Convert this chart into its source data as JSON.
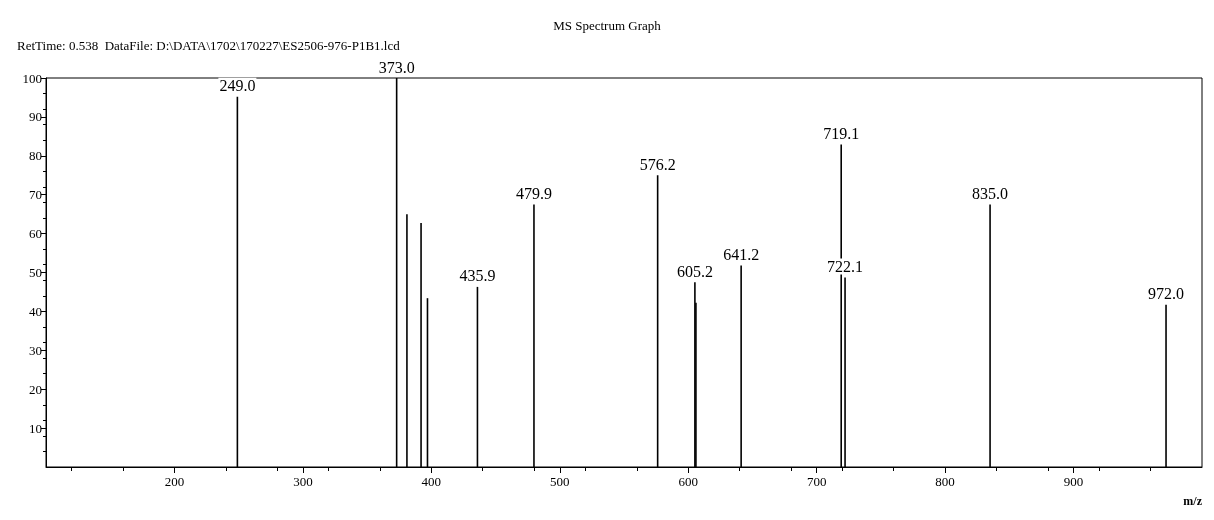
{
  "chart_data": {
    "type": "bar",
    "title": "MS Spectrum Graph",
    "subtitle": "RetTime: 0.538  DataFile: D:\\DATA\\1702\\170227\\ES2506-976-P1B1.lcd",
    "xlabel": "m/z",
    "x": [
      249.0,
      373.0,
      381,
      392,
      397,
      435.9,
      479.9,
      576.2,
      605.2,
      606,
      641.2,
      719.1,
      722.1,
      835.0,
      972.0
    ],
    "values": [
      95.2,
      100,
      65,
      62.7,
      43.4,
      46.3,
      67.5,
      75,
      47.5,
      42.2,
      51.8,
      82.9,
      48.7,
      67.5,
      41.7
    ],
    "annotations": [
      {
        "text": "249.0",
        "x": 249.0,
        "y": 95.2
      },
      {
        "text": "373.0",
        "x": 373.0,
        "y": 100
      },
      {
        "text": "435.9",
        "x": 435.9,
        "y": 46.3
      },
      {
        "text": "479.9",
        "x": 479.9,
        "y": 67.5
      },
      {
        "text": "576.2",
        "x": 576.2,
        "y": 75
      },
      {
        "text": "605.2",
        "x": 605.2,
        "y": 47.5
      },
      {
        "text": "641.2",
        "x": 641.2,
        "y": 51.8
      },
      {
        "text": "719.1",
        "x": 719.1,
        "y": 82.9
      },
      {
        "text": "722.1",
        "x": 722.1,
        "y": 48.7
      },
      {
        "text": "835.0",
        "x": 835.0,
        "y": 67.5
      },
      {
        "text": "972.0",
        "x": 972.0,
        "y": 41.7
      }
    ],
    "color": "#000000",
    "xlim": [
      100,
      1000
    ],
    "xticks": [
      200,
      300,
      400,
      500,
      600,
      700,
      800,
      900
    ],
    "ylim": [
      0,
      100
    ],
    "yticks": [
      10,
      20,
      30,
      40,
      50,
      60,
      70,
      80,
      90,
      100
    ],
    "grid": false
  }
}
